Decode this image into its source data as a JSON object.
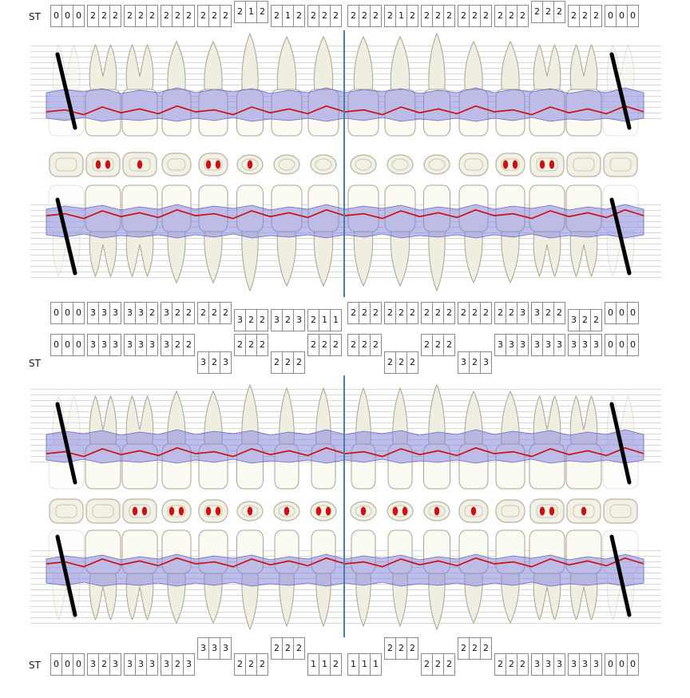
{
  "st_rows": [
    {
      "label": "ST",
      "groups": [
        "000",
        "222",
        "222",
        "222",
        "222",
        "212",
        "212",
        "222",
        "222",
        "212",
        "222",
        "222",
        "222",
        "222",
        "222",
        "000"
      ],
      "stagger": [
        0,
        0,
        0,
        0,
        0,
        1,
        0,
        0,
        0,
        0,
        0,
        0,
        0,
        1,
        0,
        0
      ]
    },
    {
      "label": "",
      "groups": [
        "000",
        "333",
        "332",
        "322",
        "222",
        "322",
        "323",
        "211",
        "222",
        "222",
        "222",
        "222",
        "223",
        "322",
        "322",
        "000"
      ],
      "stagger": [
        0,
        0,
        0,
        0,
        0,
        1,
        1,
        1,
        0,
        0,
        0,
        0,
        0,
        0,
        1,
        0
      ]
    },
    {
      "label": "ST",
      "groups": [
        "000",
        "333",
        "333",
        "322",
        "323",
        "222",
        "222",
        "222",
        "222",
        "222",
        "222",
        "323",
        "333",
        "333",
        "333",
        "000"
      ],
      "stagger": [
        0,
        0,
        0,
        0,
        1,
        0,
        1,
        0,
        0,
        1,
        0,
        1,
        0,
        0,
        0,
        0
      ]
    },
    {
      "label": "ST",
      "groups": [
        "000",
        "323",
        "333",
        "323",
        "333",
        "222",
        "222",
        "112",
        "111",
        "222",
        "222",
        "222",
        "222",
        "333",
        "333",
        "000"
      ],
      "stagger": [
        0,
        0,
        0,
        0,
        1,
        0,
        1,
        0,
        0,
        1,
        0,
        1,
        0,
        0,
        0,
        0
      ]
    }
  ],
  "teeth": {
    "types": [
      "M",
      "M",
      "M",
      "P",
      "P",
      "C",
      "I",
      "I",
      "I",
      "I",
      "C",
      "P",
      "P",
      "M",
      "M",
      "M"
    ],
    "missing": [
      1,
      0,
      0,
      0,
      0,
      0,
      0,
      0,
      0,
      0,
      0,
      0,
      0,
      0,
      0,
      1
    ]
  },
  "occlusal": {
    "upper_dots": [
      0,
      2,
      1,
      0,
      2,
      1,
      0,
      0,
      0,
      0,
      0,
      0,
      2,
      2,
      0,
      0
    ],
    "lower_dots": [
      0,
      0,
      2,
      2,
      2,
      1,
      1,
      2,
      1,
      2,
      1,
      1,
      0,
      2,
      1,
      0
    ]
  },
  "colors": {
    "gingiva_band_fill": "rgba(125,125,220,0.5)",
    "gingiva_band_stroke": "#6868bf",
    "gingival_margin": "#cc1111",
    "center_line": "#4a7da3",
    "missing_mark": "#000000",
    "grid_line": "#d9d9d9",
    "box_border": "#8a8a8a",
    "tooth_fill": "#fbfaf3",
    "root_fill": "#f0eee1",
    "tooth_stroke": "#a8a492",
    "occlusal_fill": "#f3f1e5",
    "occlusal_stroke": "#b5b2a0",
    "occlusal_inner_stroke": "#c9c6b4"
  }
}
